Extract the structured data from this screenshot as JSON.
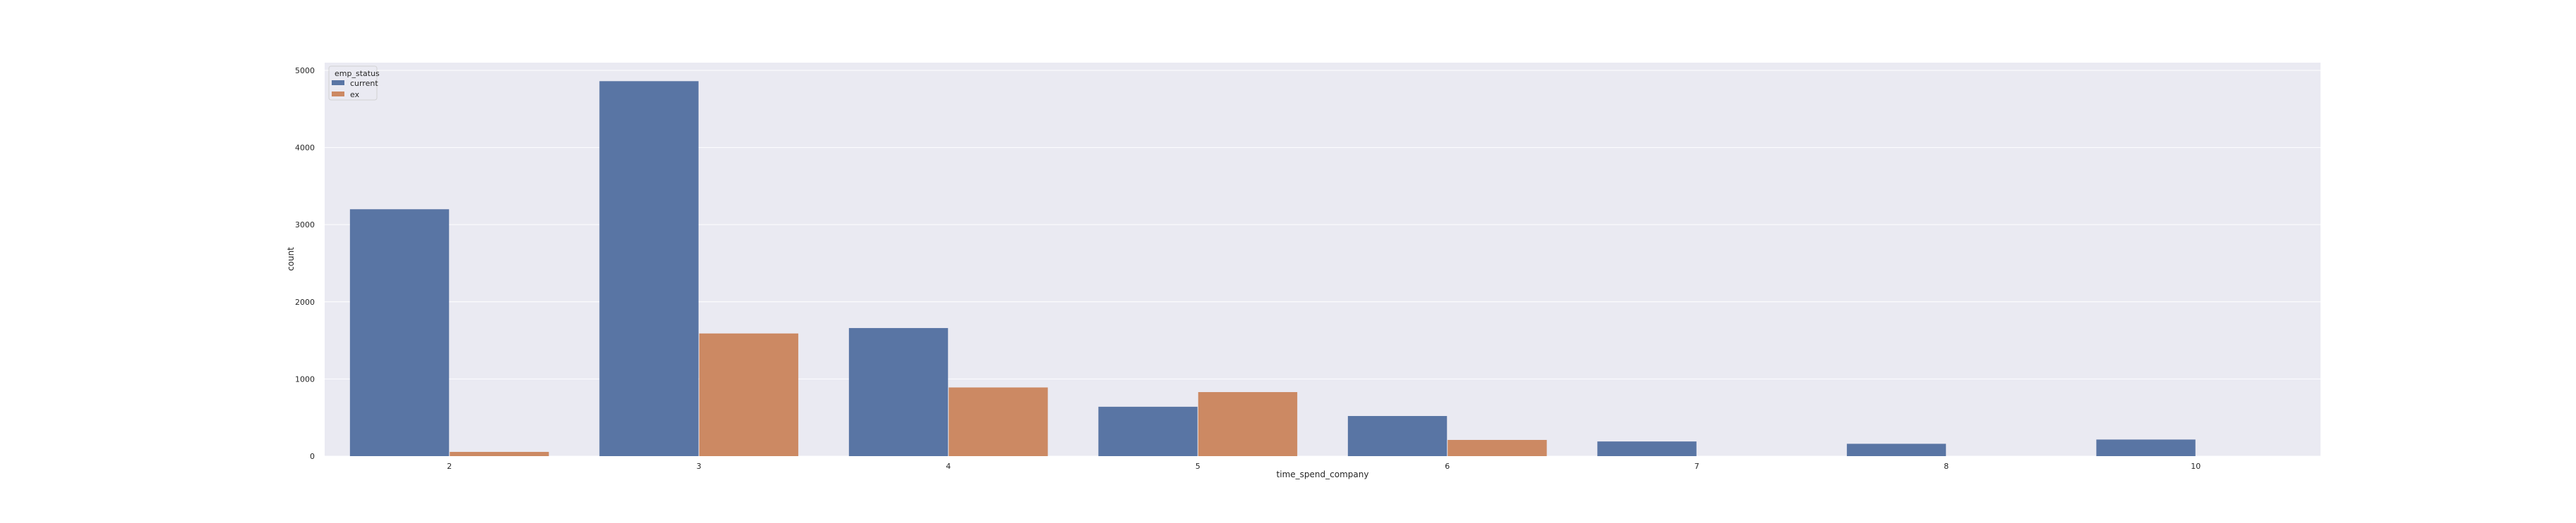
{
  "chart_data": {
    "type": "bar",
    "xlabel": "time_spend_company",
    "ylabel": "count",
    "categories": [
      "2",
      "3",
      "4",
      "5",
      "6",
      "7",
      "8",
      "10"
    ],
    "series": [
      {
        "name": "current",
        "values": [
          3200,
          4860,
          1660,
          640,
          520,
          190,
          160,
          215
        ]
      },
      {
        "name": "ex",
        "values": [
          55,
          1590,
          890,
          830,
          210,
          0,
          0,
          0
        ]
      }
    ],
    "ylim": [
      0,
      5100
    ],
    "yticks": [
      0,
      1000,
      2000,
      3000,
      4000,
      5000
    ],
    "grid": true,
    "legend": {
      "title": "emp_status",
      "placement": "top-left"
    },
    "colors": {
      "current": "#5975a4",
      "ex": "#cc8963",
      "background": "#eaeaf2"
    }
  }
}
